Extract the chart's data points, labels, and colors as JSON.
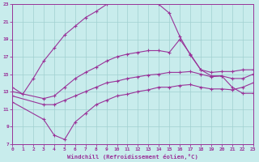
{
  "xlabel": "Windchill (Refroidissement éolien,°C)",
  "bg_color": "#c8ecec",
  "line_color": "#993399",
  "grid_color": "#a0d0d0",
  "xmin": 0,
  "xmax": 23,
  "ymin": 7,
  "ymax": 23,
  "yticks": [
    7,
    9,
    11,
    13,
    15,
    17,
    19,
    21,
    23
  ],
  "xticks": [
    0,
    1,
    2,
    3,
    4,
    5,
    6,
    7,
    8,
    9,
    10,
    11,
    12,
    13,
    14,
    15,
    16,
    17,
    18,
    19,
    20,
    21,
    22,
    23
  ],
  "curves": [
    {
      "x": [
        0,
        1,
        2,
        3,
        4,
        5,
        6,
        7,
        8,
        9,
        10,
        11,
        12,
        13,
        14,
        15,
        16,
        17,
        18,
        19,
        20,
        21,
        22,
        23
      ],
      "y": [
        13.5,
        12.7,
        14.5,
        16.5,
        18.0,
        19.5,
        20.5,
        21.5,
        22.2,
        23.0,
        23.3,
        23.5,
        23.7,
        23.5,
        23.0,
        22.0,
        19.3,
        17.2,
        15.5,
        14.8,
        14.8,
        13.5,
        12.8,
        12.8
      ]
    },
    {
      "x": [
        0,
        3,
        4,
        5,
        6,
        7,
        8,
        9,
        10,
        11,
        12,
        13,
        14,
        15,
        16,
        17,
        18,
        19,
        20,
        21,
        22,
        23
      ],
      "y": [
        13.0,
        12.2,
        12.5,
        13.5,
        14.5,
        15.2,
        15.8,
        16.5,
        17.0,
        17.3,
        17.5,
        17.7,
        17.7,
        17.5,
        19.0,
        17.3,
        15.5,
        15.2,
        15.3,
        15.3,
        15.5,
        15.5
      ]
    },
    {
      "x": [
        0,
        3,
        4,
        5,
        6,
        7,
        8,
        9,
        10,
        11,
        12,
        13,
        14,
        15,
        16,
        17,
        18,
        19,
        20,
        21,
        22,
        23
      ],
      "y": [
        12.5,
        11.5,
        11.5,
        12.0,
        12.5,
        13.0,
        13.5,
        14.0,
        14.2,
        14.5,
        14.7,
        14.9,
        15.0,
        15.2,
        15.2,
        15.3,
        15.0,
        14.7,
        14.8,
        14.5,
        14.5,
        15.0
      ]
    },
    {
      "x": [
        0,
        3,
        4,
        5,
        6,
        7,
        8,
        9,
        10,
        11,
        12,
        13,
        14,
        15,
        16,
        17,
        18,
        19,
        20,
        21,
        22,
        23
      ],
      "y": [
        11.8,
        9.8,
        8.0,
        7.5,
        9.5,
        10.5,
        11.5,
        12.0,
        12.5,
        12.7,
        13.0,
        13.2,
        13.5,
        13.5,
        13.7,
        13.8,
        13.5,
        13.3,
        13.3,
        13.2,
        13.5,
        14.0
      ]
    }
  ]
}
